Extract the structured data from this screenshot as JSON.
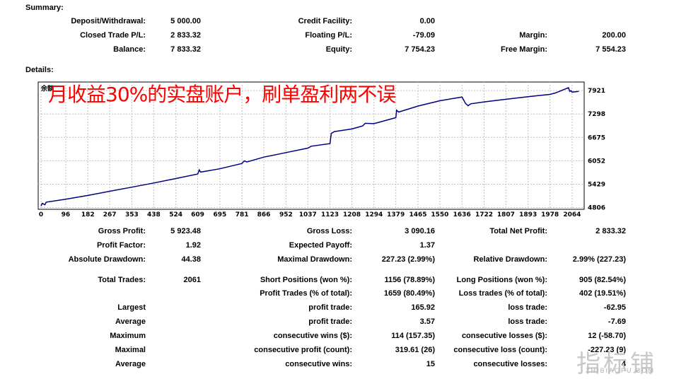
{
  "summary": {
    "heading": "Summary:",
    "deposit_label": "Deposit/Withdrawal:",
    "deposit_value": "5 000.00",
    "credit_label": "Credit Facility:",
    "credit_value": "0.00",
    "closed_label": "Closed Trade P/L:",
    "closed_value": "2 833.32",
    "floating_label": "Floating P/L:",
    "floating_value": "-79.09",
    "margin_label": "Margin:",
    "margin_value": "200.00",
    "balance_label": "Balance:",
    "balance_value": "7 833.32",
    "equity_label": "Equity:",
    "equity_value": "7 754.23",
    "free_margin_label": "Free Margin:",
    "free_margin_value": "7 554.23"
  },
  "details_heading": "Details:",
  "chart_label_corner": "余额",
  "overlay_text": "月收益30%的实盘账户，刷单盈利两不误",
  "watermark": {
    "text": "指标铺",
    "sub": "ZHIBIAOPU.COM"
  },
  "chart_data": {
    "type": "line",
    "x_ticks": [
      "0",
      "96",
      "182",
      "267",
      "353",
      "438",
      "524",
      "609",
      "695",
      "781",
      "866",
      "952",
      "1037",
      "1123",
      "1208",
      "1294",
      "1379",
      "1465",
      "1550",
      "1636",
      "1722",
      "1807",
      "1893",
      "1978",
      "2064"
    ],
    "y_ticks": [
      "7921",
      "7298",
      "6675",
      "6052",
      "5429",
      "4806"
    ],
    "xlim": [
      0,
      2100
    ],
    "ylim": [
      4760,
      8150
    ],
    "line_color": "#000080",
    "series": [
      {
        "x": [
          0,
          5,
          15,
          20,
          96,
          182,
          267,
          353,
          438,
          524,
          609,
          615,
          620,
          695,
          781,
          790,
          800,
          866,
          952,
          1037,
          1050,
          1123,
          1128,
          1140,
          1208,
          1250,
          1260,
          1294,
          1379,
          1382,
          1390,
          1465,
          1550,
          1636,
          1650,
          1660,
          1670,
          1722,
          1807,
          1893,
          1978,
          2000,
          2050,
          2055,
          2060,
          2064,
          2090
        ],
        "y": [
          4850,
          4920,
          4880,
          4950,
          5030,
          5130,
          5240,
          5350,
          5460,
          5580,
          5700,
          5810,
          5750,
          5840,
          5980,
          6050,
          6020,
          6150,
          6270,
          6390,
          6440,
          6510,
          6780,
          6830,
          6900,
          6980,
          7050,
          7040,
          7200,
          7400,
          7350,
          7510,
          7650,
          7750,
          7580,
          7520,
          7570,
          7620,
          7690,
          7760,
          7820,
          7860,
          8000,
          7900,
          7920,
          7880,
          7900
        ]
      }
    ]
  },
  "stats": {
    "gross_profit_label": "Gross Profit:",
    "gross_profit_value": "5 923.48",
    "gross_loss_label": "Gross Loss:",
    "gross_loss_value": "3 090.16",
    "net_profit_label": "Total Net Profit:",
    "net_profit_value": "2 833.32",
    "profit_factor_label": "Profit Factor:",
    "profit_factor_value": "1.92",
    "expected_payoff_label": "Expected Payoff:",
    "expected_payoff_value": "1.37",
    "abs_drawdown_label": "Absolute Drawdown:",
    "abs_drawdown_value": "44.38",
    "max_drawdown_label": "Maximal Drawdown:",
    "max_drawdown_value": "227.23 (2.99%)",
    "rel_drawdown_label": "Relative Drawdown:",
    "rel_drawdown_value": "2.99% (227.23)",
    "total_trades_label": "Total Trades:",
    "total_trades_value": "2061",
    "short_label": "Short Positions (won %):",
    "short_value": "1156 (78.89%)",
    "long_label": "Long Positions (won %):",
    "long_value": "905 (82.54%)",
    "profit_trades_label": "Profit Trades (% of total):",
    "profit_trades_value": "1659 (80.49%)",
    "loss_trades_label": "Loss trades (% of total):",
    "loss_trades_value": "402 (19.51%)",
    "largest_label": "Largest",
    "largest_profit_label": "profit trade:",
    "largest_profit_value": "165.92",
    "largest_loss_label": "loss trade:",
    "largest_loss_value": "-62.95",
    "average_label": "Average",
    "avg_profit_label": "profit trade:",
    "avg_profit_value": "3.57",
    "avg_loss_label": "loss trade:",
    "avg_loss_value": "-7.69",
    "maximum_label": "Maximum",
    "max_wins_label": "consecutive wins ($):",
    "max_wins_value": "114 (157.35)",
    "max_losses_label": "consecutive losses ($):",
    "max_losses_value": "12 (-58.70)",
    "maximal_label": "Maximal",
    "maximal_profit_label": "consecutive profit (count):",
    "maximal_profit_value": "319.61 (26)",
    "maximal_loss_label": "consecutive loss (count):",
    "maximal_loss_value": "-227.23 (9)",
    "average2_label": "Average",
    "avg_wins_label": "consecutive wins:",
    "avg_wins_value": "15",
    "avg_losses_label": "consecutive losses:",
    "avg_losses_value": "4"
  }
}
